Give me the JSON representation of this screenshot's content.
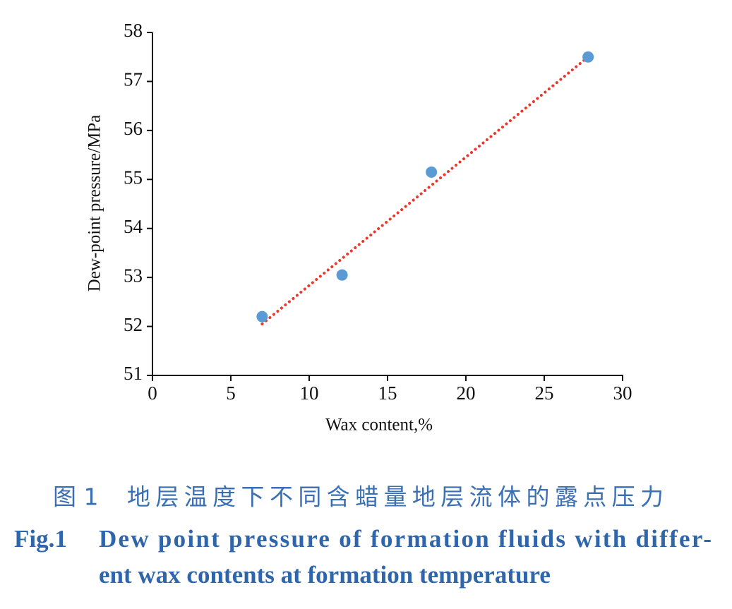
{
  "chart_data": {
    "type": "scatter",
    "x_label": "Wax content,%",
    "y_label": "Dew-point pressure/MPa",
    "x": [
      7.0,
      12.1,
      17.8,
      27.8
    ],
    "values": [
      52.2,
      53.05,
      55.15,
      57.5
    ],
    "color": "#5b9bd5",
    "trendline": {
      "color": "#e8392f",
      "x": [
        7.0,
        27.8
      ],
      "values": [
        52.05,
        57.5
      ]
    },
    "xlim": [
      0,
      30
    ],
    "xticks": [
      0,
      5,
      10,
      15,
      20,
      25,
      30
    ],
    "ylim": [
      51,
      58
    ],
    "yticks": [
      51,
      52,
      53,
      54,
      55,
      56,
      57,
      58
    ],
    "grid": false,
    "caption": {
      "label_zh": "图 1",
      "text_zh": "地层温度下不同含蜡量地层流体的露点压力",
      "label_en": "Fig.1",
      "text_en_lines": [
        "Dew point pressure of formation fluids with differ-",
        "ent wax contents at formation temperature"
      ]
    }
  }
}
